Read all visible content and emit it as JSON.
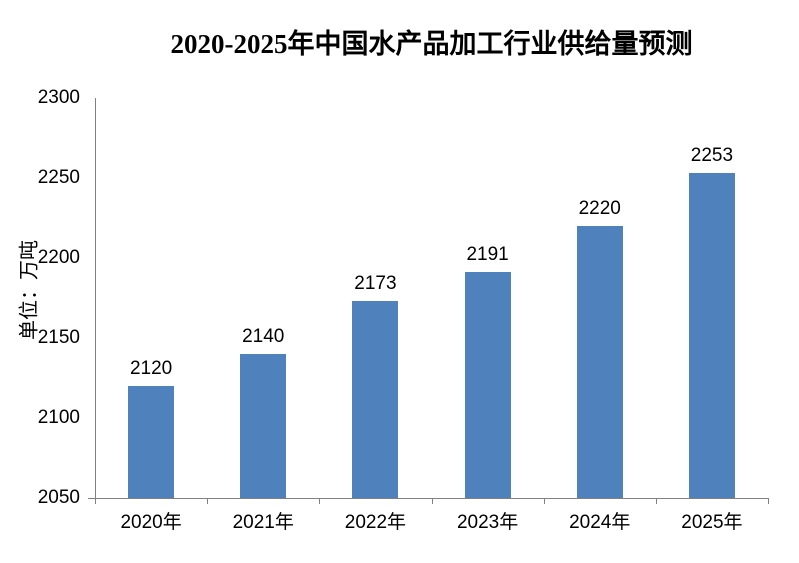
{
  "chart_data": {
    "type": "bar",
    "title": "2020-2025年中国水产品加工行业供给量预测",
    "ylabel": "单位：万吨",
    "xlabel": "",
    "categories": [
      "2020年",
      "2021年",
      "2022年",
      "2023年",
      "2024年",
      "2025年"
    ],
    "values": [
      2120,
      2140,
      2173,
      2191,
      2220,
      2253
    ],
    "ylim": [
      2050,
      2300
    ],
    "yticks": [
      2050,
      2100,
      2150,
      2200,
      2250,
      2300
    ],
    "grid": false,
    "legend_position": "none",
    "data_labels_shown": true,
    "bar_color": "#4F81BD",
    "axis_color": "#808080",
    "text_color": "#000000",
    "background_color": "#FFFFFF"
  }
}
